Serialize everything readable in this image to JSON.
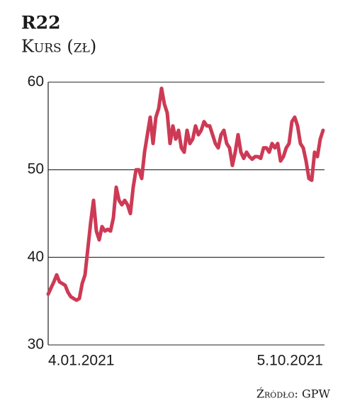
{
  "chart_data": {
    "type": "line",
    "title": "R22",
    "subtitle": "Kurs (zł)",
    "source": "Źródło: GPW",
    "categories": [
      "4.01.2021",
      null,
      null,
      null,
      null,
      null,
      null,
      null,
      null,
      null,
      null,
      null,
      null,
      null,
      null,
      null,
      null,
      null,
      null,
      null,
      null,
      null,
      null,
      null,
      null,
      null,
      null,
      null,
      null,
      null,
      null,
      null,
      null,
      null,
      null,
      null,
      null,
      null,
      null,
      null,
      null,
      null,
      null,
      null,
      null,
      null,
      null,
      null,
      null,
      null,
      null,
      null,
      null,
      null,
      null,
      null,
      null,
      null,
      null,
      null,
      null,
      null,
      null,
      null,
      null,
      null,
      null,
      null,
      null,
      null,
      null,
      null,
      null,
      null,
      null,
      null,
      null,
      null,
      null,
      null,
      null,
      null,
      null,
      null,
      null,
      null,
      null,
      null,
      null,
      null,
      null,
      null,
      null,
      null,
      null,
      null,
      null,
      "5.10.2021"
    ],
    "series": [
      {
        "name": "R22",
        "color": "#cd3a55",
        "values": [
          35.8,
          36.5,
          37.2,
          38,
          37.2,
          37,
          36.8,
          36,
          35.5,
          35.3,
          35.1,
          35.3,
          37,
          38,
          41,
          44,
          46.5,
          43,
          42,
          43.5,
          43,
          43.2,
          43,
          44.5,
          48,
          46.5,
          46,
          46.5,
          46,
          45,
          48,
          50,
          50,
          49,
          52,
          54,
          56,
          53,
          56,
          57,
          59.3,
          57.5,
          56.5,
          53,
          55,
          53.5,
          54.5,
          52.5,
          52,
          54.5,
          53,
          53.5,
          55,
          54,
          54.5,
          55.5,
          55,
          55,
          54,
          53,
          52.5,
          54,
          54.5,
          53,
          52.5,
          50.5,
          52,
          54,
          52,
          51.3,
          52,
          51.5,
          51.2,
          51.5,
          51.5,
          51.3,
          52.5,
          52.5,
          52,
          53,
          52.5,
          53,
          51,
          51.5,
          52.5,
          53,
          55.5,
          56,
          55,
          53,
          52.5,
          51,
          49,
          48.8,
          52,
          51.5,
          53.5,
          54.5
        ]
      }
    ],
    "ylim": [
      30,
      60
    ],
    "yticks": [
      30,
      40,
      50,
      60
    ],
    "grid": true
  }
}
